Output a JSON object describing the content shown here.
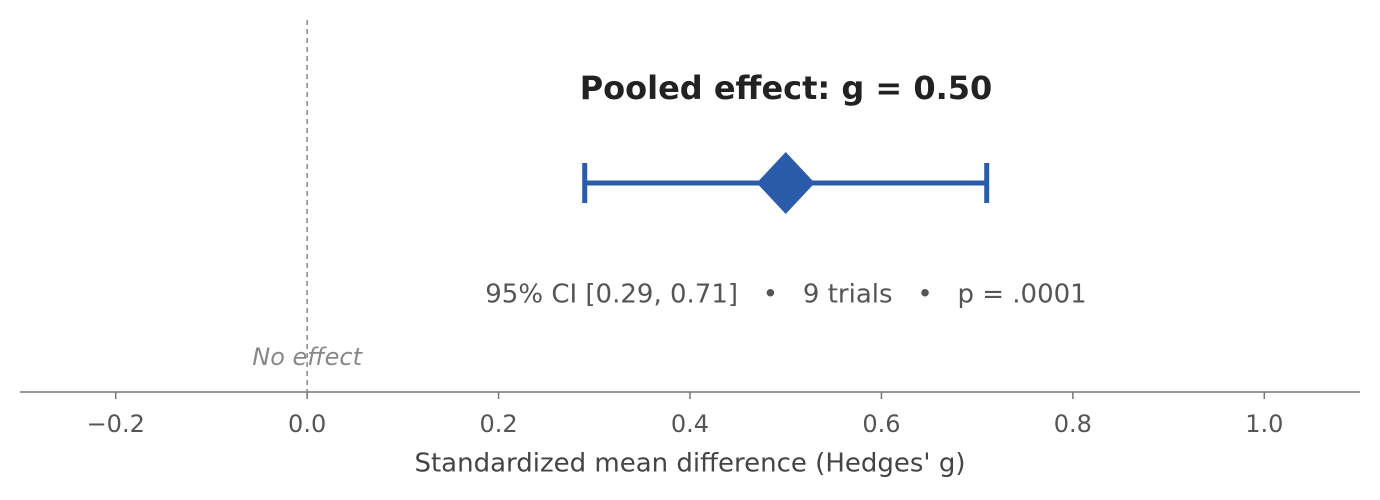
{
  "chart_data": {
    "type": "forest",
    "title": "Pooled effect: g = 0.50",
    "summary": "95% CI [0.29, 0.71]   •   9 trials   •   p = .0001",
    "xlabel": "Standardized mean difference (Hedges' g)",
    "reference": 0,
    "reference_label": "No effect",
    "estimate": 0.5,
    "ci_low": 0.29,
    "ci_high": 0.71,
    "color": "#2a5caa",
    "xlim": [
      -0.3,
      1.1
    ],
    "xticks": [
      {
        "value": -0.2,
        "label": "−0.2"
      },
      {
        "value": 0,
        "label": "0.0"
      },
      0.2,
      0.4,
      0.6,
      0.8,
      {
        "value": 1,
        "label": "1.0"
      }
    ]
  }
}
